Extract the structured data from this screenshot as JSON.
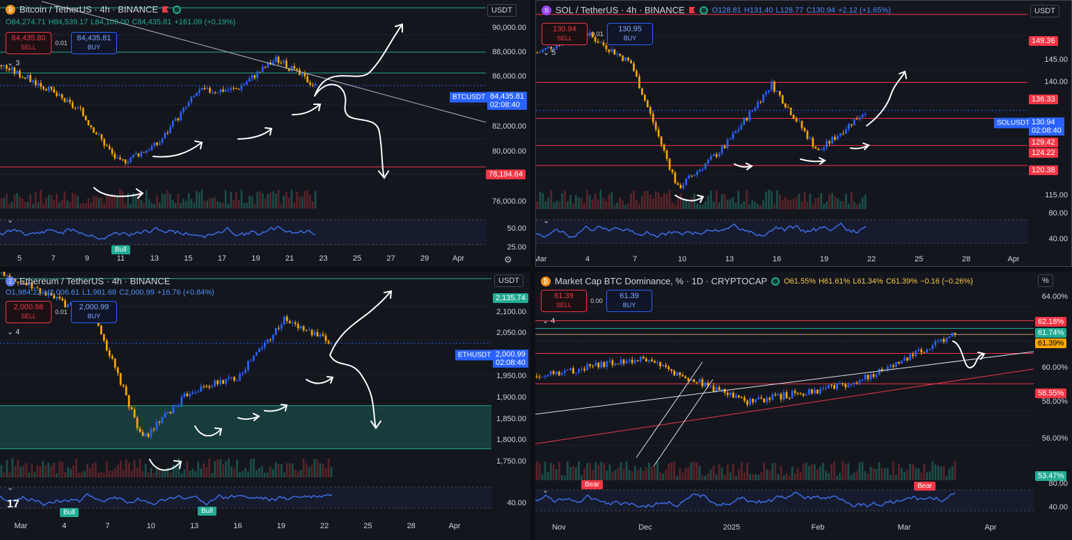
{
  "colors": {
    "up": "#2962ff",
    "down": "#f7a600",
    "res": "#f23645",
    "sup": "#22ab94",
    "annot": "#ffffff",
    "rsi": "#3d6ee6"
  },
  "panes": [
    {
      "name": "btc",
      "title": "Bitcoin / TetherUS · 4h · BINANCE",
      "logo_icon": "bitcoin-icon",
      "ohlc": {
        "o": "O84,274.71",
        "h": "H84,539.17",
        "l": "L84,109.00",
        "c": "C84,435.81",
        "chg": "+161.09 (+0.19%)"
      },
      "sell": {
        "price": "84,435.80",
        "label": "SELL"
      },
      "buy": {
        "price": "84,435.81",
        "label": "BUY"
      },
      "spread": "0.01",
      "indicator_count": "3",
      "unit": "USDT",
      "y_ticks": [
        "90,000.00",
        "88,000.00",
        "86,000.00",
        "82,000.00",
        "80,000.00",
        "76,000.00"
      ],
      "rsi_ticks": [
        "50.00",
        "25.00"
      ],
      "x_ticks": [
        "5",
        "7",
        "9",
        "11",
        "13",
        "15",
        "17",
        "19",
        "21",
        "23",
        "25",
        "27",
        "29",
        "Apr"
      ],
      "symbol": "BTCUSDT",
      "price": "84,435.81",
      "countdown": "02:08:40",
      "tags": [
        {
          "text": "78,194.64",
          "color": "#f23645"
        }
      ],
      "pills": [
        {
          "text": "Bull",
          "color": "#22ab94"
        }
      ]
    },
    {
      "name": "sol",
      "title": "SOL / TetherUS · 4h · BINANCE",
      "logo_icon": "solana-icon",
      "ohlc": {
        "o": "O128.81",
        "h": "H131.40",
        "l": "L128.77",
        "c": "C130.94",
        "chg": "+2.12 (+1.65%)"
      },
      "sell": {
        "price": "130.94",
        "label": "SELL"
      },
      "buy": {
        "price": "130.95",
        "label": "BUY"
      },
      "spread": "0.01",
      "indicator_count": "5",
      "unit": "USDT",
      "y_ticks": [
        "145.00",
        "140.00",
        "115.00"
      ],
      "rsi_ticks": [
        "80.00",
        "40.00"
      ],
      "x_ticks": [
        "Mar",
        "4",
        "7",
        "10",
        "13",
        "16",
        "19",
        "22",
        "25",
        "28",
        "Apr"
      ],
      "symbol": "SOLUSDT",
      "price": "130.94",
      "countdown": "02:08:40",
      "tags": [
        {
          "text": "149.36",
          "color": "#f23645"
        },
        {
          "text": "136.33",
          "color": "#f23645"
        },
        {
          "text": "129.42",
          "color": "#f23645"
        },
        {
          "text": "124.22",
          "color": "#f23645"
        },
        {
          "text": "120.38",
          "color": "#f23645"
        }
      ],
      "pills": []
    },
    {
      "name": "eth",
      "title": "Ethereum / TetherUS · 4h · BINANCE",
      "logo_icon": "ethereum-icon",
      "ohlc": {
        "o": "O1,984.22",
        "h": "H2,006.61",
        "l": "L1,981.68",
        "c": "C2,000.99",
        "chg": "+16.76 (+0.84%)"
      },
      "sell": {
        "price": "2,000.98",
        "label": "SELL"
      },
      "buy": {
        "price": "2,000.99",
        "label": "BUY"
      },
      "spread": "0.01",
      "indicator_count": "4",
      "unit": "USDT",
      "y_ticks": [
        "2,100.00",
        "2,050.00",
        "1,950.00",
        "1,900.00",
        "1,850.00",
        "1,800.00",
        "1,750.00"
      ],
      "rsi_ticks": [
        "40.00"
      ],
      "x_ticks": [
        "Mar",
        "4",
        "7",
        "10",
        "13",
        "16",
        "19",
        "22",
        "25",
        "28",
        "Apr"
      ],
      "symbol": "ETHUSDT",
      "price": "2,000.99",
      "countdown": "02:08:40",
      "tags": [
        {
          "text": "2,135.74",
          "color": "#22ab94"
        }
      ],
      "pills": [
        {
          "text": "Bull",
          "color": "#22ab94"
        },
        {
          "text": "Bull",
          "color": "#22ab94"
        }
      ]
    },
    {
      "name": "dom",
      "title": "Market Cap BTC Dominance, % · 1D · CRYPTOCAP",
      "logo_icon": "bitcoin-icon",
      "ohlc": {
        "o": "O61.55%",
        "h": "H61.61%",
        "l": "L61.34%",
        "c": "C61.39%",
        "chg": "−0.16 (−0.26%)"
      },
      "sell": {
        "price": "61.39",
        "label": "SELL"
      },
      "buy": {
        "price": "61.39",
        "label": "BUY"
      },
      "spread": "0.00",
      "indicator_count": "4",
      "unit": "%",
      "y_ticks": [
        "64.00%",
        "60.00%",
        "58.00%",
        "56.00%"
      ],
      "rsi_ticks": [
        "80.00",
        "40.00"
      ],
      "x_ticks": [
        "Nov",
        "Dec",
        "2025",
        "Feb",
        "Mar",
        "Apr"
      ],
      "symbol": "",
      "price": "",
      "countdown": "",
      "tags": [
        {
          "text": "62.18%",
          "color": "#f23645"
        },
        {
          "text": "61.74%",
          "color": "#22ab94"
        },
        {
          "text": "61.39%",
          "color": "#f7a600"
        },
        {
          "text": "58.55%",
          "color": "#f23645"
        },
        {
          "text": "53.47%",
          "color": "#22ab94"
        }
      ],
      "pills": [
        {
          "text": "Bear",
          "color": "#f23645"
        },
        {
          "text": "Bear",
          "color": "#f23645"
        }
      ]
    }
  ],
  "chart_data": [
    {
      "type": "candlestick",
      "title": "Bitcoin / TetherUS · 4h · BINANCE",
      "ylim": [
        75000,
        91000
      ],
      "x": [
        "5",
        "7",
        "9",
        "11",
        "13",
        "15",
        "17",
        "19",
        "21"
      ],
      "close": [
        86000,
        84500,
        82500,
        78500,
        80000,
        84000,
        84200,
        86500,
        84435.81
      ],
      "levels": [
        90400,
        87000,
        85400,
        78194.64
      ],
      "last": 84435.81
    },
    {
      "type": "candlestick",
      "title": "SOL / TetherUS · 4h · BINANCE",
      "ylim": [
        112,
        152
      ],
      "x": [
        "Mar",
        "4",
        "7",
        "10",
        "13",
        "16",
        "19",
        "22"
      ],
      "close": [
        142,
        146,
        140,
        116,
        124,
        136,
        123,
        130.94
      ],
      "levels": [
        149.36,
        136.33,
        129.42,
        124.22,
        120.38
      ],
      "last": 130.94
    },
    {
      "type": "candlestick",
      "title": "Ethereum / TetherUS · 4h · BINANCE",
      "ylim": [
        1720,
        2150
      ],
      "x": [
        "Mar",
        "4",
        "7",
        "10",
        "13",
        "16",
        "19",
        "22"
      ],
      "close": [
        2150,
        2100,
        2050,
        1800,
        1900,
        1930,
        2050,
        2000.99
      ],
      "levels": [
        2135.74,
        1870,
        1780
      ],
      "last": 2000.99
    },
    {
      "type": "candlestick",
      "title": "Market Cap BTC Dominance, % · 1D · CRYPTOCAP",
      "ylim": [
        53,
        65
      ],
      "x": [
        "Nov",
        "Dec",
        "2025",
        "Feb",
        "Mar"
      ],
      "close": [
        59,
        60,
        57.5,
        58.5,
        61.39
      ],
      "levels": [
        62.18,
        61.74,
        61.39,
        60.3,
        58.55
      ],
      "last": 61.39
    }
  ]
}
